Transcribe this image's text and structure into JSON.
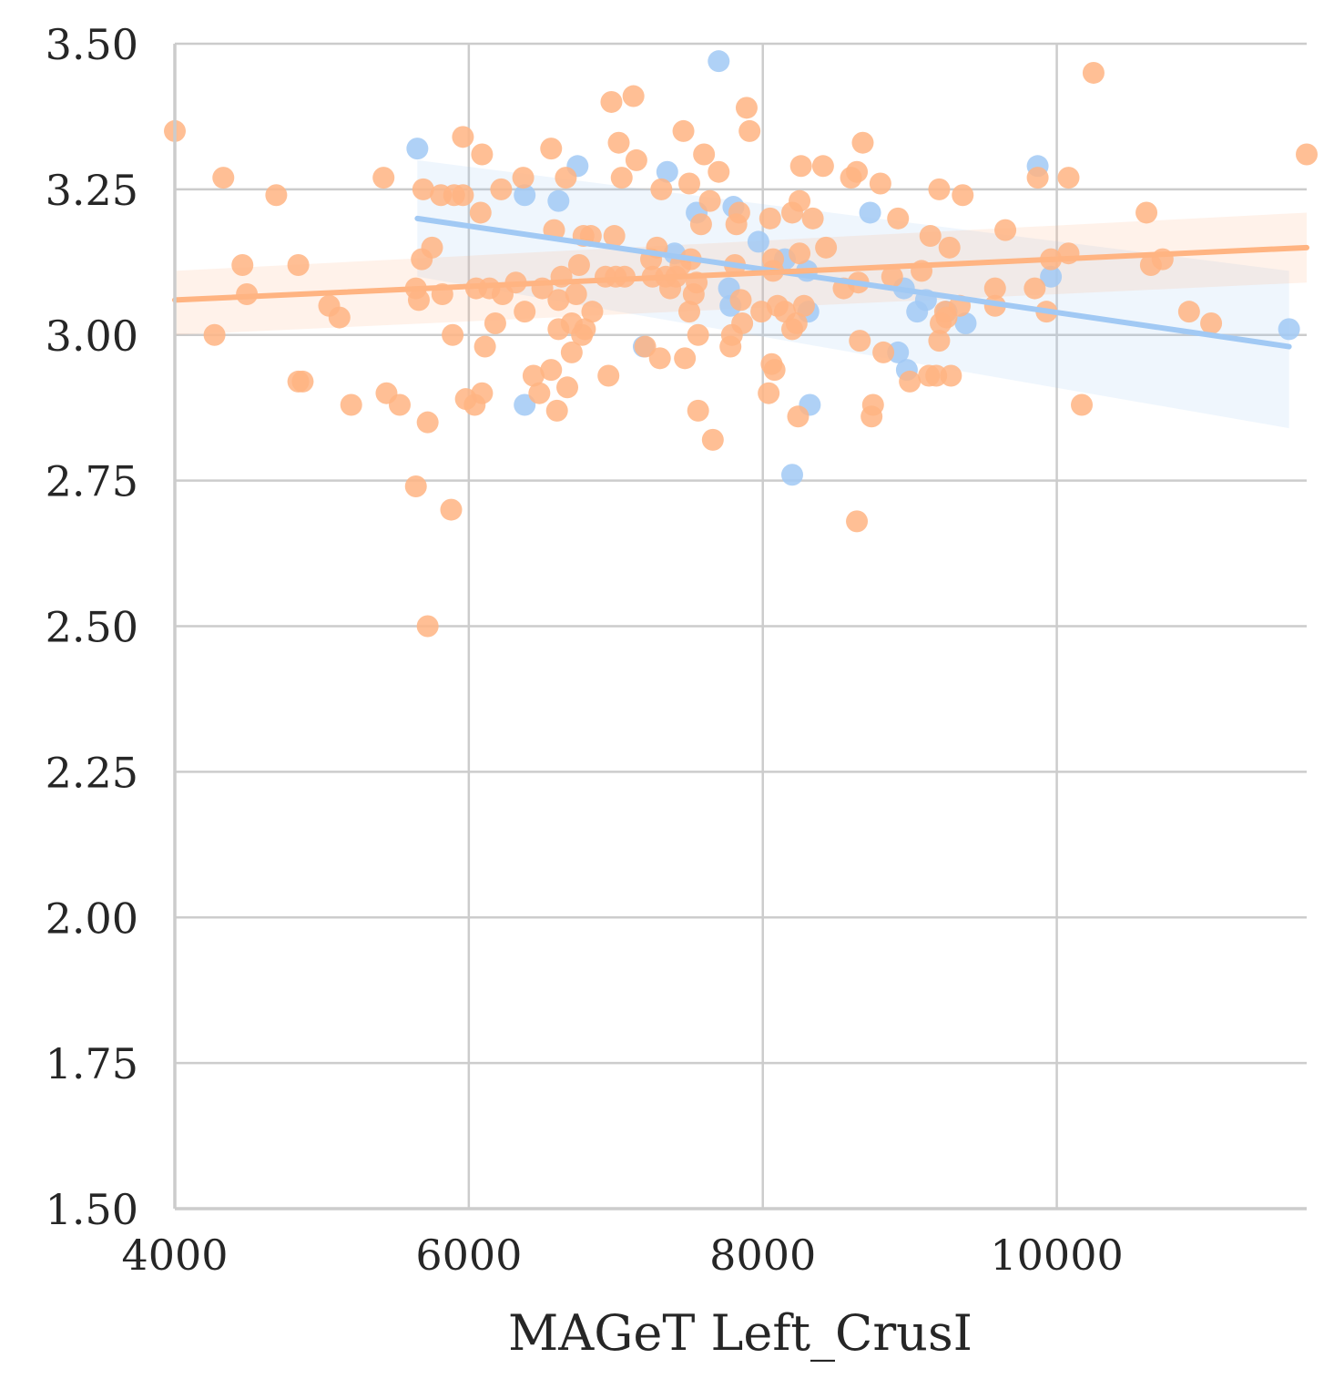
{
  "chart_data": {
    "type": "scatter",
    "title": "",
    "xlabel": "MAGeT Left_CrusI",
    "ylabel": "",
    "xlim": [
      4000,
      11700
    ],
    "ylim": [
      1.5,
      3.5
    ],
    "x_ticks": [
      4000,
      6000,
      8000,
      10000
    ],
    "x_tick_labels": [
      "4000",
      "6000",
      "8000",
      "10000"
    ],
    "y_ticks": [
      1.5,
      1.75,
      2.0,
      2.25,
      2.5,
      2.75,
      3.0,
      3.25,
      3.5
    ],
    "y_tick_labels": [
      "1.50",
      "1.75",
      "2.00",
      "2.25",
      "2.50",
      "2.75",
      "3.00",
      "3.25",
      "3.50"
    ],
    "grid": true,
    "legend": "none",
    "series": [
      {
        "color": "#a1c9f4",
        "regression": {
          "x": [
            5650,
            11580
          ],
          "y": [
            3.2,
            2.98
          ]
        },
        "ci_band": {
          "x": [
            5650,
            11580
          ],
          "upper": [
            3.3,
            3.11
          ],
          "lower": [
            3.1,
            2.84
          ]
        },
        "points": [
          [
            5650,
            3.32
          ],
          [
            6380,
            3.24
          ],
          [
            6610,
            3.23
          ],
          [
            6740,
            3.29
          ],
          [
            6380,
            2.88
          ],
          [
            7350,
            3.28
          ],
          [
            7700,
            3.47
          ],
          [
            7550,
            3.21
          ],
          [
            7800,
            3.22
          ],
          [
            7400,
            3.14
          ],
          [
            7770,
            3.08
          ],
          [
            7780,
            3.05
          ],
          [
            7970,
            3.16
          ],
          [
            8150,
            3.13
          ],
          [
            8300,
            3.11
          ],
          [
            8310,
            3.04
          ],
          [
            8320,
            2.88
          ],
          [
            8200,
            2.76
          ],
          [
            8730,
            3.21
          ],
          [
            8920,
            2.97
          ],
          [
            8960,
            3.08
          ],
          [
            8980,
            2.94
          ],
          [
            9050,
            3.04
          ],
          [
            9110,
            3.06
          ],
          [
            9250,
            3.04
          ],
          [
            9380,
            3.02
          ],
          [
            9870,
            3.29
          ],
          [
            9960,
            3.1
          ],
          [
            11580,
            3.01
          ],
          [
            7190,
            2.98
          ]
        ]
      },
      {
        "color": "#ffb482",
        "regression": {
          "x": [
            4000,
            11700
          ],
          "y": [
            3.06,
            3.15
          ]
        },
        "ci_band": {
          "x": [
            4000,
            11700
          ],
          "upper": [
            3.11,
            3.21
          ],
          "lower": [
            3.0,
            3.09
          ]
        },
        "points": [
          [
            4000,
            3.35
          ],
          [
            4330,
            3.27
          ],
          [
            4460,
            3.12
          ],
          [
            4490,
            3.07
          ],
          [
            4270,
            3.0
          ],
          [
            4690,
            3.24
          ],
          [
            4840,
            3.12
          ],
          [
            4840,
            2.92
          ],
          [
            4870,
            2.92
          ],
          [
            5050,
            3.05
          ],
          [
            5120,
            3.03
          ],
          [
            5200,
            2.88
          ],
          [
            5420,
            3.27
          ],
          [
            5440,
            2.9
          ],
          [
            5530,
            2.88
          ],
          [
            5640,
            2.74
          ],
          [
            5640,
            3.08
          ],
          [
            5660,
            3.06
          ],
          [
            5690,
            3.25
          ],
          [
            5680,
            3.13
          ],
          [
            5750,
            3.15
          ],
          [
            5720,
            2.85
          ],
          [
            5720,
            2.5
          ],
          [
            5810,
            3.24
          ],
          [
            5820,
            3.07
          ],
          [
            5880,
            2.7
          ],
          [
            5890,
            3.0
          ],
          [
            5900,
            3.24
          ],
          [
            5960,
            3.24
          ],
          [
            5960,
            3.34
          ],
          [
            5980,
            2.89
          ],
          [
            6040,
            2.88
          ],
          [
            6050,
            3.08
          ],
          [
            6080,
            3.21
          ],
          [
            6090,
            2.9
          ],
          [
            6090,
            3.31
          ],
          [
            6110,
            2.98
          ],
          [
            6140,
            3.08
          ],
          [
            6180,
            3.02
          ],
          [
            6220,
            3.25
          ],
          [
            6230,
            3.07
          ],
          [
            6320,
            3.09
          ],
          [
            6370,
            3.27
          ],
          [
            6380,
            3.04
          ],
          [
            6440,
            2.93
          ],
          [
            6480,
            2.9
          ],
          [
            6500,
            3.08
          ],
          [
            6560,
            2.94
          ],
          [
            6560,
            3.32
          ],
          [
            6580,
            3.18
          ],
          [
            6600,
            2.87
          ],
          [
            6610,
            3.01
          ],
          [
            6610,
            3.06
          ],
          [
            6630,
            3.1
          ],
          [
            6660,
            3.27
          ],
          [
            6670,
            2.91
          ],
          [
            6700,
            2.97
          ],
          [
            6700,
            3.02
          ],
          [
            6730,
            3.07
          ],
          [
            6750,
            3.12
          ],
          [
            6770,
            3.0
          ],
          [
            6780,
            3.17
          ],
          [
            6790,
            3.01
          ],
          [
            6830,
            3.17
          ],
          [
            6840,
            3.04
          ],
          [
            6930,
            3.1
          ],
          [
            6950,
            2.93
          ],
          [
            6970,
            3.4
          ],
          [
            6990,
            3.17
          ],
          [
            7000,
            3.1
          ],
          [
            7020,
            3.33
          ],
          [
            7040,
            3.27
          ],
          [
            7060,
            3.1
          ],
          [
            7120,
            3.41
          ],
          [
            7140,
            3.3
          ],
          [
            7200,
            2.98
          ],
          [
            7240,
            3.13
          ],
          [
            7250,
            3.1
          ],
          [
            7280,
            3.15
          ],
          [
            7300,
            2.96
          ],
          [
            7310,
            3.25
          ],
          [
            7340,
            3.1
          ],
          [
            7370,
            3.08
          ],
          [
            7410,
            3.1
          ],
          [
            7440,
            3.12
          ],
          [
            7460,
            3.35
          ],
          [
            7470,
            2.96
          ],
          [
            7500,
            3.26
          ],
          [
            7500,
            3.04
          ],
          [
            7510,
            3.13
          ],
          [
            7530,
            3.07
          ],
          [
            7550,
            3.09
          ],
          [
            7560,
            3.0
          ],
          [
            7560,
            2.87
          ],
          [
            7580,
            3.19
          ],
          [
            7600,
            3.31
          ],
          [
            7640,
            3.23
          ],
          [
            7660,
            2.82
          ],
          [
            7700,
            3.28
          ],
          [
            7780,
            2.98
          ],
          [
            7790,
            3.0
          ],
          [
            7810,
            3.12
          ],
          [
            7820,
            3.19
          ],
          [
            7840,
            3.21
          ],
          [
            7850,
            3.06
          ],
          [
            7860,
            3.02
          ],
          [
            7890,
            3.39
          ],
          [
            7910,
            3.35
          ],
          [
            7990,
            3.04
          ],
          [
            8040,
            2.9
          ],
          [
            8050,
            3.2
          ],
          [
            8060,
            2.95
          ],
          [
            8070,
            3.13
          ],
          [
            8070,
            3.11
          ],
          [
            8080,
            2.94
          ],
          [
            8100,
            3.05
          ],
          [
            8150,
            3.04
          ],
          [
            8200,
            3.01
          ],
          [
            8200,
            3.21
          ],
          [
            8230,
            3.02
          ],
          [
            8240,
            2.86
          ],
          [
            8250,
            3.23
          ],
          [
            8250,
            3.14
          ],
          [
            8260,
            3.29
          ],
          [
            8280,
            3.05
          ],
          [
            8340,
            3.2
          ],
          [
            8410,
            3.29
          ],
          [
            8430,
            3.15
          ],
          [
            8550,
            3.08
          ],
          [
            8600,
            3.27
          ],
          [
            8640,
            3.28
          ],
          [
            8640,
            2.68
          ],
          [
            8650,
            3.09
          ],
          [
            8660,
            2.99
          ],
          [
            8680,
            3.33
          ],
          [
            8740,
            2.86
          ],
          [
            8750,
            2.88
          ],
          [
            8800,
            3.26
          ],
          [
            8820,
            2.97
          ],
          [
            8880,
            3.1
          ],
          [
            8920,
            3.2
          ],
          [
            9000,
            2.92
          ],
          [
            9080,
            3.11
          ],
          [
            9130,
            2.93
          ],
          [
            9140,
            3.17
          ],
          [
            9180,
            2.93
          ],
          [
            9200,
            3.25
          ],
          [
            9200,
            2.99
          ],
          [
            9210,
            3.02
          ],
          [
            9240,
            3.04
          ],
          [
            9250,
            3.03
          ],
          [
            9270,
            3.15
          ],
          [
            9280,
            2.93
          ],
          [
            9340,
            3.05
          ],
          [
            9360,
            3.24
          ],
          [
            9580,
            3.08
          ],
          [
            9580,
            3.05
          ],
          [
            9650,
            3.18
          ],
          [
            9850,
            3.08
          ],
          [
            9870,
            3.27
          ],
          [
            9930,
            3.04
          ],
          [
            9960,
            3.13
          ],
          [
            10080,
            3.14
          ],
          [
            10080,
            3.27
          ],
          [
            10170,
            2.88
          ],
          [
            10250,
            3.45
          ],
          [
            10610,
            3.21
          ],
          [
            10640,
            3.12
          ],
          [
            10720,
            3.13
          ],
          [
            10900,
            3.04
          ],
          [
            11050,
            3.02
          ],
          [
            11700,
            3.31
          ]
        ]
      }
    ]
  }
}
